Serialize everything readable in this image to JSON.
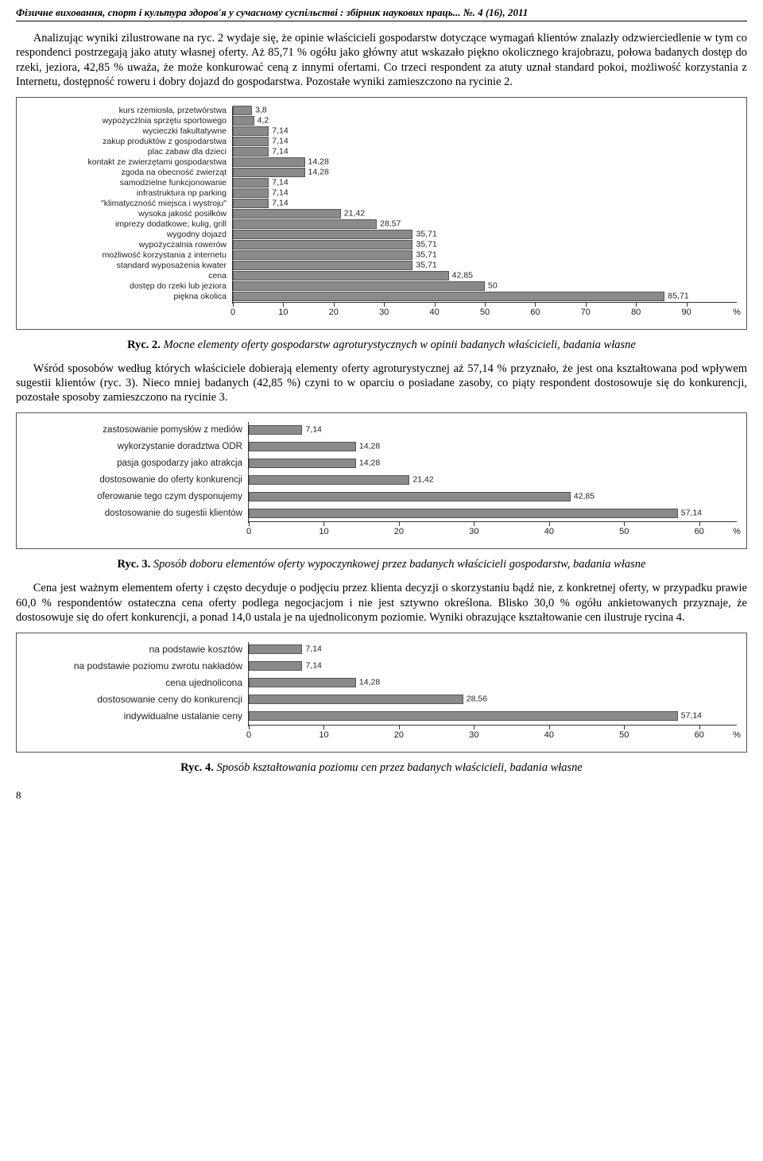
{
  "header": {
    "journal": "Фізичне виховання, спорт і культура здоров'я у сучасному суспільстві : збірник наукових праць... №. 4 (16), 2011"
  },
  "para1": "Analizując wyniki zilustrowane na ryc. 2 wydaje się, że opinie właścicieli gospodarstw dotyczące wymagań klientów znalazły odzwierciedlenie w tym co respondenci postrzegają jako atuty własnej oferty. Aż 85,71 % ogółu jako główny atut wskazało piękno okolicznego krajobrazu, połowa badanych dostęp do rzeki, jeziora, 42,85 % uważa, że może konkurować ceną z innymi ofertami. Co trzeci respondent za atuty uznał standard pokoi, możliwość korzystania z Internetu, dostępność roweru i dobry dojazd do gospodarstwa. Pozostałe wyniki zamieszczono na rycinie 2.",
  "chart2": {
    "bar_color": "#8a8a8a",
    "bar_border": "#555555",
    "max": 100,
    "ticks": [
      0,
      10,
      20,
      30,
      40,
      50,
      60,
      70,
      80,
      90
    ],
    "unit": "%",
    "items": [
      {
        "label": "kurs rzemiosła, przetwórstwa",
        "value": 3.8,
        "txt": "3,8"
      },
      {
        "label": "wypożyczlnia sprzętu sportowego",
        "value": 4.2,
        "txt": "4,2"
      },
      {
        "label": "wycieczki fakultatywne",
        "value": 7.14,
        "txt": "7,14"
      },
      {
        "label": "zakup produktów z gospodarstwa",
        "value": 7.14,
        "txt": "7,14"
      },
      {
        "label": "plac zabaw dla dzieci",
        "value": 7.14,
        "txt": "7,14"
      },
      {
        "label": "kontakt ze zwierzętami gospodarstwa",
        "value": 14.28,
        "txt": "14,28"
      },
      {
        "label": "zgoda na obecność zwierząt",
        "value": 14.28,
        "txt": "14,28"
      },
      {
        "label": "samodzielne funkcjonowanie",
        "value": 7.14,
        "txt": "7,14"
      },
      {
        "label": "infrastruktura np parking",
        "value": 7.14,
        "txt": "7,14"
      },
      {
        "label": "\"klimatyczność miejsca i wystroju\"",
        "value": 7.14,
        "txt": "7,14"
      },
      {
        "label": "wysoka jakość posiłków",
        "value": 21.42,
        "txt": "21,42"
      },
      {
        "label": "imprezy dodatkowe; kulig, grill",
        "value": 28.57,
        "txt": "28,57"
      },
      {
        "label": "wygodny dojazd",
        "value": 35.71,
        "txt": "35,71"
      },
      {
        "label": "wypożyczalnia rowerów",
        "value": 35.71,
        "txt": "35,71"
      },
      {
        "label": "możliwość korzystania z internetu",
        "value": 35.71,
        "txt": "35,71"
      },
      {
        "label": "standard wyposażenia kwater",
        "value": 35.71,
        "txt": "35,71"
      },
      {
        "label": "cena",
        "value": 42.85,
        "txt": "42,85"
      },
      {
        "label": "dostęp do rzeki lub jeziora",
        "value": 50,
        "txt": "50"
      },
      {
        "label": "piękna okolica",
        "value": 85.71,
        "txt": "85,71"
      }
    ]
  },
  "caption2": {
    "ryc": "Ryc. 2.",
    "text": " Mocne elementy oferty gospodarstw agroturystycznych w opinii badanych właścicieli, badania własne"
  },
  "para2": "Wśród sposobów według których właściciele dobierają elementy oferty agroturystycznej aż 57,14 % przyznało, że jest ona kształtowana pod wpływem sugestii klientów (ryc. 3). Nieco mniej badanych (42,85 %) czyni to w oparciu o posiadane zasoby, co piąty respondent dostosowuje się do konkurencji, pozostałe sposoby zamieszczono na rycinie 3.",
  "chart3": {
    "bar_color": "#8a8a8a",
    "bar_border": "#555555",
    "max": 65,
    "ticks": [
      0,
      10,
      20,
      30,
      40,
      50,
      60
    ],
    "unit": "%",
    "items": [
      {
        "label": "zastosowanie pomysłów z mediów",
        "value": 7.14,
        "txt": "7,14"
      },
      {
        "label": "wykorzystanie doradztwa ODR",
        "value": 14.28,
        "txt": "14,28"
      },
      {
        "label": "pasja gospodarzy jako atrakcja",
        "value": 14.28,
        "txt": "14,28"
      },
      {
        "label": "dostosowanie do oferty konkurencji",
        "value": 21.42,
        "txt": "21,42"
      },
      {
        "label": "oferowanie tego czym dysponujemy",
        "value": 42.85,
        "txt": "42,85"
      },
      {
        "label": "dostosowanie do sugestii klientów",
        "value": 57.14,
        "txt": "57,14"
      }
    ]
  },
  "caption3": {
    "ryc": "Ryc. 3.",
    "text": " Sposób doboru elementów oferty wypoczynkowej przez badanych właścicieli gospodarstw, badania własne"
  },
  "para3": "Cena jest ważnym elementem oferty i często decyduje o podjęciu przez klienta decyzji o skorzystaniu bądź nie, z konkretnej oferty, w przypadku prawie 60,0 % respondentów ostateczna cena oferty podlega negocjacjom i nie jest sztywno określona. Blisko 30,0 % ogółu ankietowanych przyznaje, że dostosowuje się do ofert konkurencji, a ponad 14,0 ustala je na ujednoliconym poziomie. Wyniki obrazujące kształtowanie cen ilustruje rycina 4.",
  "chart4": {
    "bar_color": "#8a8a8a",
    "bar_border": "#555555",
    "max": 65,
    "ticks": [
      0,
      10,
      20,
      30,
      40,
      50,
      60
    ],
    "unit": "%",
    "items": [
      {
        "label": "na podstawie kosztów",
        "value": 7.14,
        "txt": "7,14"
      },
      {
        "label": "na podstawie poziomu zwrotu nakładów",
        "value": 7.14,
        "txt": "7,14"
      },
      {
        "label": "cena ujednolicona",
        "value": 14.28,
        "txt": "14,28"
      },
      {
        "label": "dostosowanie ceny do konkurencji",
        "value": 28.56,
        "txt": "28,56"
      },
      {
        "label": "indywidualne ustalanie ceny",
        "value": 57.14,
        "txt": "57,14"
      }
    ]
  },
  "caption4": {
    "ryc": "Ryc. 4.",
    "text": " Sposób kształtowania poziomu cen przez badanych właścicieli, badania własne"
  },
  "page_num": "8"
}
